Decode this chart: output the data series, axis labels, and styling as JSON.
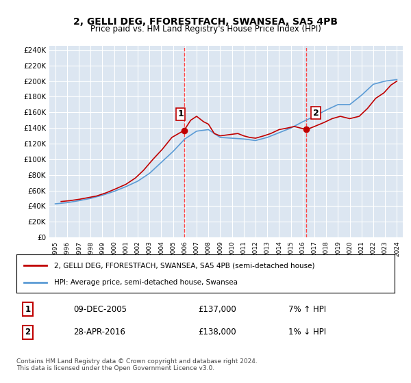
{
  "title": "2, GELLI DEG, FFORESTFACH, SWANSEA, SA5 4PB",
  "subtitle": "Price paid vs. HM Land Registry's House Price Index (HPI)",
  "xlabel": "",
  "ylabel": "",
  "ylim": [
    0,
    245000
  ],
  "yticks": [
    0,
    20000,
    40000,
    60000,
    80000,
    100000,
    120000,
    140000,
    160000,
    180000,
    200000,
    220000,
    240000
  ],
  "ytick_labels": [
    "£0",
    "£20K",
    "£40K",
    "£60K",
    "£80K",
    "£100K",
    "£120K",
    "£140K",
    "£160K",
    "£180K",
    "£200K",
    "£220K",
    "£240K"
  ],
  "background_color": "#dce6f1",
  "plot_bg_color": "#dce6f1",
  "legend_line1": "2, GELLI DEG, FFORESTFACH, SWANSEA, SA5 4PB (semi-detached house)",
  "legend_line2": "HPI: Average price, semi-detached house, Swansea",
  "annotation1_label": "1",
  "annotation1_date": "09-DEC-2005",
  "annotation1_price": "£137,000",
  "annotation1_hpi": "7% ↑ HPI",
  "annotation2_label": "2",
  "annotation2_date": "28-APR-2016",
  "annotation2_price": "£138,000",
  "annotation2_hpi": "1% ↓ HPI",
  "footer": "Contains HM Land Registry data © Crown copyright and database right 2024.\nThis data is licensed under the Open Government Licence v3.0.",
  "sale1_year": 2005.94,
  "sale1_price": 137000,
  "sale2_year": 2016.33,
  "sale2_price": 138000,
  "hpi_color": "#5b9bd5",
  "price_color": "#c00000",
  "vline_color": "#ff4444",
  "hpi_years": [
    1995,
    1996,
    1997,
    1998,
    1999,
    2000,
    2001,
    2002,
    2003,
    2004,
    2005,
    2006,
    2007,
    2008,
    2009,
    2010,
    2011,
    2012,
    2013,
    2014,
    2015,
    2016,
    2017,
    2018,
    2019,
    2020,
    2021,
    2022,
    2023,
    2024
  ],
  "hpi_values": [
    43000,
    44500,
    47000,
    50000,
    54000,
    59000,
    65000,
    72000,
    82000,
    96000,
    110000,
    126000,
    136000,
    138000,
    128000,
    127000,
    126000,
    124000,
    128000,
    134000,
    140000,
    148000,
    155000,
    163000,
    170000,
    170000,
    182000,
    196000,
    200000,
    202000
  ],
  "price_years": [
    1995.5,
    1996.2,
    1997.1,
    1997.8,
    1998.5,
    1999.3,
    2000.1,
    2001.0,
    2001.8,
    2002.5,
    2003.3,
    2004.1,
    2004.9,
    2005.94,
    2006.5,
    2007.0,
    2007.6,
    2008.0,
    2008.5,
    2009.0,
    2009.5,
    2010.0,
    2010.5,
    2011.0,
    2011.5,
    2012.0,
    2012.7,
    2013.3,
    2014.0,
    2014.7,
    2015.3,
    2016.33,
    2017.0,
    2017.8,
    2018.5,
    2019.2,
    2020.0,
    2020.8,
    2021.5,
    2022.2,
    2022.9,
    2023.5,
    2024.0
  ],
  "price_values": [
    46000,
    47000,
    49000,
    51000,
    53000,
    57000,
    62000,
    68000,
    76000,
    86000,
    100000,
    113000,
    128000,
    137000,
    150000,
    155000,
    148000,
    145000,
    133000,
    130000,
    131000,
    132000,
    133000,
    130000,
    128000,
    127000,
    130000,
    133000,
    138000,
    140000,
    142000,
    138000,
    142000,
    147000,
    152000,
    155000,
    152000,
    155000,
    165000,
    178000,
    185000,
    195000,
    200000
  ]
}
